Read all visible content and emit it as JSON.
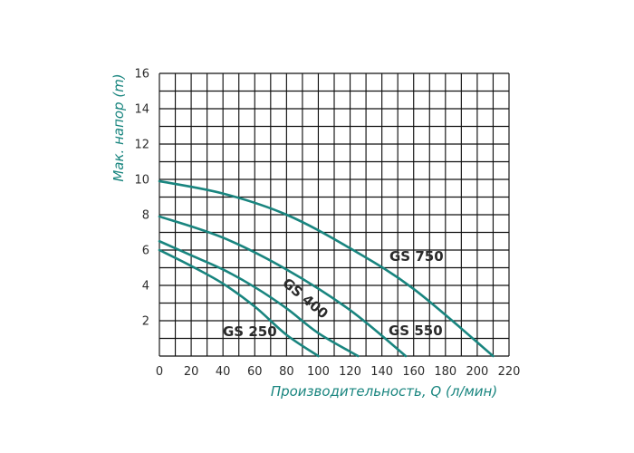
{
  "chart_data": {
    "type": "line",
    "title": "",
    "xlabel": "Производительность, Q (л/мин)",
    "ylabel": "Мак. напор (m)",
    "xlim": [
      0,
      220
    ],
    "ylim": [
      0,
      16
    ],
    "xticks": [
      0,
      20,
      40,
      60,
      80,
      100,
      120,
      140,
      160,
      180,
      200,
      220
    ],
    "yticks": [
      2,
      4,
      6,
      8,
      10,
      12,
      14,
      16
    ],
    "grid": true,
    "grid_minor_x_step": 10,
    "grid_minor_y_step": 1,
    "legend": "none",
    "series_color": "#19857f",
    "grid_color": "#111111",
    "axis_title_color": "#19857f",
    "series": [
      {
        "name": "GS 250",
        "x": [
          0,
          20,
          40,
          60,
          80,
          100
        ],
        "y": [
          6.0,
          5.1,
          4.1,
          2.8,
          1.2,
          0
        ]
      },
      {
        "name": "GS 400",
        "x": [
          0,
          20,
          40,
          60,
          80,
          100,
          125
        ],
        "y": [
          6.5,
          5.7,
          4.9,
          3.9,
          2.7,
          1.3,
          0
        ]
      },
      {
        "name": "GS 550",
        "x": [
          0,
          40,
          80,
          120,
          155
        ],
        "y": [
          7.9,
          6.7,
          4.9,
          2.6,
          0
        ]
      },
      {
        "name": "GS 750",
        "x": [
          0,
          40,
          80,
          120,
          160,
          210
        ],
        "y": [
          9.9,
          9.2,
          8.0,
          6.1,
          3.8,
          0
        ]
      }
    ]
  }
}
